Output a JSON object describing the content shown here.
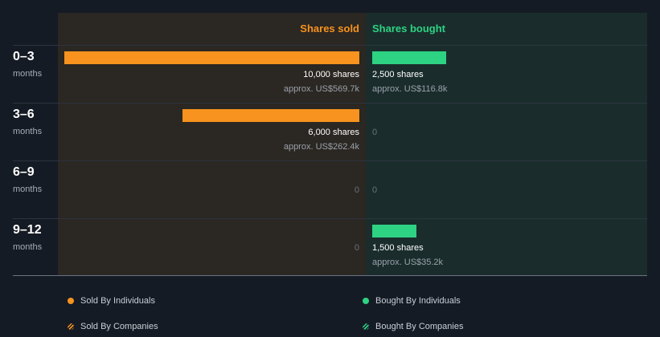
{
  "chart_data": {
    "type": "bar",
    "title": "",
    "columns": {
      "sold": "Shares sold",
      "bought": "Shares bought"
    },
    "rows": [
      {
        "period": "0–3",
        "unit": "months",
        "sold": {
          "shares": 10000,
          "shares_label": "10,000 shares",
          "approx_label": "approx. US$569.7k"
        },
        "bought": {
          "shares": 2500,
          "shares_label": "2,500 shares",
          "approx_label": "approx. US$116.8k"
        }
      },
      {
        "period": "3–6",
        "unit": "months",
        "sold": {
          "shares": 6000,
          "shares_label": "6,000 shares",
          "approx_label": "approx. US$262.4k"
        },
        "bought": {
          "shares": 0,
          "zero_label": "0"
        }
      },
      {
        "period": "6–9",
        "unit": "months",
        "sold": {
          "shares": 0,
          "zero_label": "0"
        },
        "bought": {
          "shares": 0,
          "zero_label": "0"
        }
      },
      {
        "period": "9–12",
        "unit": "months",
        "sold": {
          "shares": 0,
          "zero_label": "0"
        },
        "bought": {
          "shares": 1500,
          "shares_label": "1,500 shares",
          "approx_label": "approx. US$35.2k"
        }
      }
    ],
    "max_shares": 10000,
    "legend": [
      {
        "label": "Sold By Individuals",
        "color": "#f7931e",
        "style": "solid"
      },
      {
        "label": "Bought By Individuals",
        "color": "#2dd283",
        "style": "solid"
      },
      {
        "label": "Sold By Companies",
        "color": "#f7931e",
        "style": "hatched"
      },
      {
        "label": "Bought By Companies",
        "color": "#2dd283",
        "style": "hatched"
      }
    ],
    "colors": {
      "sold": "#f7931e",
      "bought": "#2dd283",
      "background": "#151b24"
    }
  }
}
